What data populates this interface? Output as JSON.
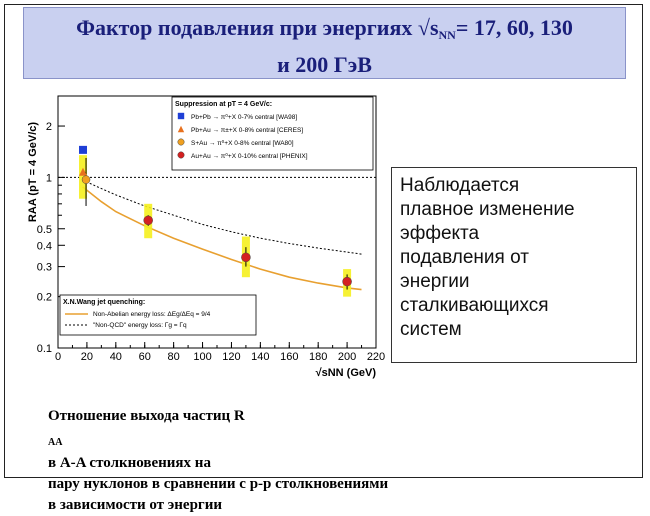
{
  "slide": {
    "title_line1_pre": "Фактор подавления при энергиях ",
    "title_sqrt": "√s",
    "title_sub": "NN",
    "title_line1_post": "= 17, 60, 130",
    "title_line2": "и 200 ГэВ",
    "note_lines": [
      "Наблюдается",
      "плавное изменение",
      "эффекта",
      "подавления от",
      "энергии",
      "сталкивающихся",
      "систем"
    ],
    "caption_l1_pre": "Отношение выхода частиц R",
    "caption_l1_sub": "AA",
    "caption_l1_post": " в A-A столкновениях на",
    "caption_l2": "пару нуклонов в сравнении с p-p столкновениями",
    "caption_l3": "в зависимости от энергии"
  },
  "chart_data": {
    "type": "scatter",
    "xlabel": "√sNN (GeV)",
    "ylabel": "RAA (pT = 4 GeV/c)",
    "xlim": [
      0,
      220
    ],
    "ylim": [
      0.1,
      3
    ],
    "yscale": "log",
    "x_ticks": [
      0,
      20,
      40,
      60,
      80,
      100,
      120,
      140,
      160,
      180,
      200,
      220
    ],
    "y_ticks": [
      0.1,
      0.2,
      0.3,
      0.4,
      0.5,
      1,
      2
    ],
    "y_tick_labels": [
      "0.1",
      "0.2",
      "0.3",
      "0.4",
      "0.5",
      "1",
      "2"
    ],
    "legend_title": "Suppression at pT = 4 GeV/c:",
    "series": [
      {
        "name": "Pb+Pb → π⁰+X 0-7% central [WA98]",
        "marker": "square",
        "color": "#1f3fd6",
        "points": [
          {
            "x": 17.3,
            "y": 1.45
          }
        ]
      },
      {
        "name": "Pb+Au → π±+X 0-8% central [CERES]",
        "marker": "triangle",
        "color": "#e8711e",
        "points": [
          {
            "x": 17.3,
            "y": 1.08
          }
        ]
      },
      {
        "name": "S+Au → π⁰+X 0-8% central [WA80]",
        "marker": "circle",
        "color": "#f0a020",
        "points": [
          {
            "x": 19.4,
            "y": 0.97
          }
        ]
      },
      {
        "name": "Au+Au → π⁰+X 0-10% central [PHENIX]",
        "marker": "circle",
        "color": "#d42020",
        "points": [
          {
            "x": 62.4,
            "y": 0.56
          },
          {
            "x": 130,
            "y": 0.34
          },
          {
            "x": 200,
            "y": 0.245
          }
        ]
      }
    ],
    "bands": [
      {
        "x": 17.3,
        "low": 0.75,
        "high": 1.35
      },
      {
        "x": 62.4,
        "low": 0.44,
        "high": 0.7
      },
      {
        "x": 130,
        "low": 0.26,
        "high": 0.45
      },
      {
        "x": 200,
        "low": 0.2,
        "high": 0.29
      }
    ],
    "curves": [
      {
        "name": "Non-Abelian energy loss: ΔEg/ΔEq = 9/4",
        "style": "solid",
        "color": "#e8a030",
        "x": [
          17,
          20,
          30,
          40,
          60,
          80,
          100,
          120,
          140,
          160,
          180,
          200,
          210
        ],
        "y": [
          0.88,
          0.84,
          0.72,
          0.63,
          0.52,
          0.44,
          0.38,
          0.33,
          0.29,
          0.26,
          0.24,
          0.225,
          0.22
        ]
      },
      {
        "name": "\"Non-QCD\" energy loss: Γg = Γq",
        "style": "dotted",
        "color": "#000000",
        "x": [
          17,
          20,
          30,
          40,
          60,
          80,
          100,
          120,
          140,
          160,
          180,
          200,
          210
        ],
        "y": [
          0.97,
          0.94,
          0.86,
          0.79,
          0.68,
          0.6,
          0.53,
          0.48,
          0.44,
          0.41,
          0.385,
          0.365,
          0.355
        ]
      }
    ],
    "curve_legend_title": "X.N.Wang jet quenching:",
    "reference_line_y": 1
  }
}
